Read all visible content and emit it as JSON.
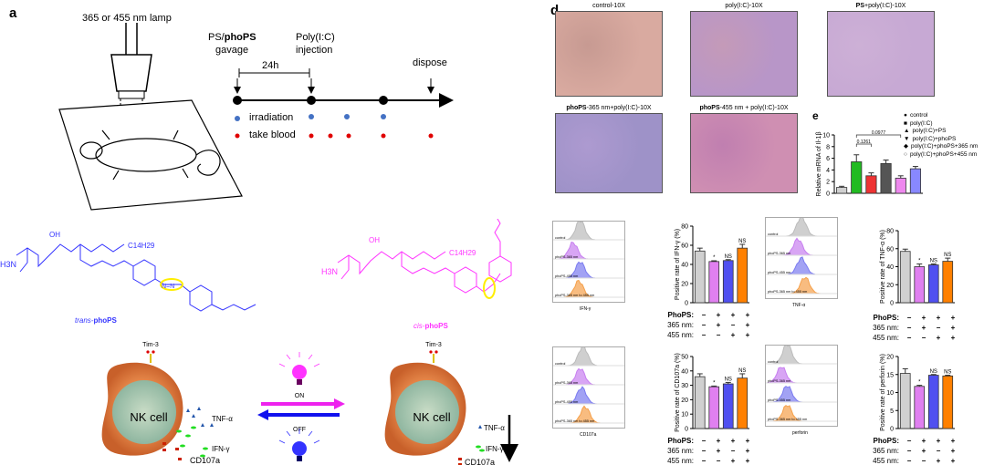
{
  "panel_a": {
    "label": "a",
    "lamp_label": "365 or 455 nm  lamp",
    "gavage_prefix": "PS/",
    "gavage_bold": "phoPS",
    "gavage_word": "gavage",
    "injection_line1": "Poly(I:C)",
    "injection_line2": "injection",
    "interval": "24h",
    "dispose": "dispose",
    "legend_irradiation": "irradiation",
    "legend_blood": "take blood",
    "colors": {
      "irradiation": "#4472c4",
      "blood": "#e00000"
    }
  },
  "mechanism": {
    "trans_italic": "trans-",
    "trans_bold": "phoPS",
    "cis_italic": "cis-",
    "cis_bold": "phoPS",
    "chain": "C14H29",
    "oh": "OH",
    "amine": "H3N",
    "azo": "N=N",
    "receptor": "Tim-3",
    "cell": "NK cell",
    "on": "ON",
    "off": "OFF",
    "tnf": "TNF-α",
    "ifn": "IFN-γ",
    "cd107a": "CD107a",
    "colors": {
      "trans": "#3333ff",
      "cis": "#ff33ff",
      "cell": "#e07a3a",
      "nucleus": "#a9c9a9"
    }
  },
  "panel_d": {
    "label": "d",
    "images": [
      {
        "title": "control-10X",
        "c1": "#d9aaa0",
        "c2": "#c79a92"
      },
      {
        "title": "poly(I:C)-10X",
        "c1": "#b896c8",
        "c2": "#c49ab8"
      },
      {
        "title_bold": "PS",
        "title": "+poly(I:C)-10X",
        "c1": "#c7a9d4",
        "c2": "#cdb0d6"
      },
      {
        "title_bold": "phoPS",
        "title": "-365 nm+poly(I:C)-10X",
        "c1": "#9e92c8",
        "c2": "#ad9ad0"
      },
      {
        "title_bold": "phoPS",
        "title": "-455 nm + poly(I:C)-10X",
        "c1": "#cf8fb2",
        "c2": "#c07fb0"
      }
    ]
  },
  "panel_e": {
    "label": "e"
  },
  "flow": {
    "lanes": [
      "control",
      "phoPS-365 nm",
      "phoPS-455 nm",
      "phoPS-365 nm to 455 nm"
    ],
    "sign_labels": [
      "PhoPS:",
      "365 nm:",
      "455 nm:"
    ],
    "signs": [
      [
        "−",
        "+",
        "+",
        "+"
      ],
      [
        "−",
        "+",
        "−",
        "+"
      ],
      [
        "−",
        "−",
        "+",
        "+"
      ]
    ],
    "xlabels": [
      "IFN-γ",
      "TNF-α",
      "CD107a",
      "perforin"
    ]
  },
  "chart_data": [
    {
      "type": "bar",
      "id": "e",
      "ylabel": "Relative mRNA of Il-1β",
      "ylim": [
        0,
        10
      ],
      "yticks": [
        0,
        2,
        4,
        6,
        8,
        10
      ],
      "categories": [
        "control",
        "poly(I:C)",
        "poly(I:C)+PS",
        "poly(I:C)+phoPS",
        "poly(I:C)+phoPS+365 nm",
        "poly(I:C)+phoPS+455 nm"
      ],
      "values": [
        1.0,
        5.4,
        3.0,
        5.1,
        2.6,
        4.2
      ],
      "errors": [
        0.2,
        1.2,
        0.5,
        0.6,
        0.4,
        0.4
      ],
      "colors": [
        "#d0d0d0",
        "#22bb22",
        "#ee3333",
        "#555555",
        "#ee88ee",
        "#8888ff"
      ],
      "legend": [
        "control",
        "poly(I:C)",
        "poly(I:C)+PS",
        "poly(I:C)+phoPS",
        "poly(I:C)+phoPS+365  nm",
        "poly(I:C)+phoPS+455  nm"
      ],
      "legend_markers": [
        "●",
        "■",
        "▲",
        "▼",
        "◆",
        "○"
      ],
      "brackets": [
        {
          "from": 1,
          "to": 2,
          "label": "0.1261"
        },
        {
          "from": 1,
          "to": 4,
          "label": "0.0977"
        }
      ],
      "annotations": [
        "",
        "",
        "",
        "",
        "",
        ""
      ]
    },
    {
      "type": "bar",
      "id": "ifn",
      "ylabel": "Positive rate of IFN-γ (%)",
      "ylim": [
        0,
        80
      ],
      "yticks": [
        0,
        20,
        40,
        60,
        80
      ],
      "values": [
        54,
        43,
        44,
        57
      ],
      "errors": [
        3,
        0.8,
        1,
        4
      ],
      "annotations": [
        "",
        "*",
        "NS",
        "NS"
      ],
      "colors": [
        "#d0d0d0",
        "#e080f0",
        "#5050f0",
        "#ff8000"
      ]
    },
    {
      "type": "bar",
      "id": "tnf",
      "ylabel": "Positive rate of TNF-α (%)",
      "ylim": [
        0,
        80
      ],
      "yticks": [
        0,
        20,
        40,
        60,
        80
      ],
      "values": [
        57,
        40,
        42,
        46
      ],
      "errors": [
        2.5,
        3,
        1,
        3.5
      ],
      "annotations": [
        "",
        "*",
        "NS",
        "NS"
      ],
      "colors": [
        "#d0d0d0",
        "#e080f0",
        "#5050f0",
        "#ff8000"
      ]
    },
    {
      "type": "bar",
      "id": "cd107a",
      "ylabel": "Positive rate of CD107a (%)",
      "ylim": [
        0,
        50
      ],
      "yticks": [
        0,
        10,
        20,
        30,
        40,
        50
      ],
      "values": [
        36,
        29,
        31,
        35
      ],
      "errors": [
        2,
        0.5,
        1,
        3
      ],
      "annotations": [
        "",
        "*",
        "NS",
        "NS"
      ],
      "colors": [
        "#d0d0d0",
        "#e080f0",
        "#5050f0",
        "#ff8000"
      ]
    },
    {
      "type": "bar",
      "id": "perforin",
      "ylabel": "Positive rate of perforin (%)",
      "ylim": [
        0,
        20
      ],
      "yticks": [
        0,
        5,
        10,
        15,
        20
      ],
      "values": [
        15.3,
        11.7,
        14.8,
        14.6
      ],
      "errors": [
        1.3,
        0.3,
        0.2,
        0.2
      ],
      "annotations": [
        "",
        "*",
        "NS",
        "NS"
      ],
      "colors": [
        "#d0d0d0",
        "#e080f0",
        "#5050f0",
        "#ff8000"
      ]
    }
  ]
}
